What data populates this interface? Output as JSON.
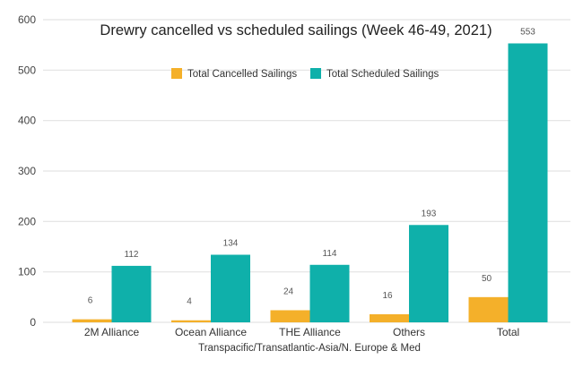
{
  "chart_data": {
    "type": "bar",
    "title": "Drewry cancelled vs scheduled sailings (Week 46-49, 2021)",
    "xlabel": "Transpacific/Transatlantic-Asia/N. Europe & Med",
    "ylabel": "",
    "ylim": [
      0,
      600
    ],
    "yticks": [
      0,
      100,
      200,
      300,
      400,
      500,
      600
    ],
    "grid": true,
    "legend_position": "top-center",
    "categories": [
      "2M Alliance",
      "Ocean Alliance",
      "THE Alliance",
      "Others",
      "Total"
    ],
    "series": [
      {
        "name": "Total Cancelled Sailings",
        "color": "#F4B02A",
        "values": [
          6,
          4,
          24,
          16,
          50
        ]
      },
      {
        "name": "Total Scheduled Sailings",
        "color": "#0FB0AA",
        "values": [
          112,
          134,
          114,
          193,
          553
        ]
      }
    ],
    "data_labels": true
  }
}
